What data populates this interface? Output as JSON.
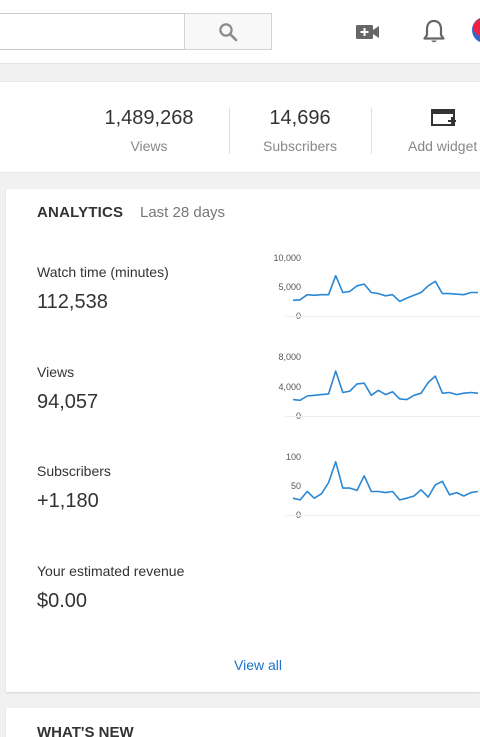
{
  "search": {
    "placeholder": ""
  },
  "header": {
    "search_icon": "search-icon",
    "upload_icon": "video-camera-add-icon",
    "notifications_icon": "bell-icon"
  },
  "stats": {
    "views": {
      "value": "1,489,268",
      "label": "Views"
    },
    "subscribers": {
      "value": "14,696",
      "label": "Subscribers"
    },
    "add_widget": {
      "label": "Add widget"
    }
  },
  "analytics": {
    "title": "ANALYTICS",
    "period": "Last 28 days",
    "metrics": [
      {
        "label": "Watch time (minutes)",
        "value": "112,538",
        "ticks": [
          "10,000",
          "5,000",
          "0"
        ],
        "max": 10000,
        "series": [
          2800,
          2900,
          3800,
          3700,
          3800,
          3800,
          7200,
          4200,
          4400,
          5400,
          5700,
          4200,
          4000,
          3600,
          3800,
          2600,
          3200,
          3700,
          4200,
          5400,
          6200,
          4000,
          4000,
          3900,
          3800,
          4200,
          4200
        ]
      },
      {
        "label": "Views",
        "value": "94,057",
        "ticks": [
          "8,000",
          "4,000",
          "0"
        ],
        "max": 8000,
        "series": [
          2300,
          2200,
          2800,
          2900,
          3000,
          3100,
          6300,
          3300,
          3500,
          4500,
          4600,
          2900,
          3600,
          3000,
          3400,
          2400,
          2300,
          2900,
          3200,
          4700,
          5600,
          3200,
          3300,
          3000,
          3200,
          3300,
          3200
        ]
      },
      {
        "label": "Subscribers",
        "value": "+1,180",
        "ticks": [
          "100",
          "50",
          "0"
        ],
        "max": 100,
        "series": [
          30,
          27,
          42,
          30,
          38,
          58,
          95,
          48,
          48,
          44,
          70,
          42,
          42,
          40,
          42,
          27,
          30,
          34,
          45,
          32,
          54,
          60,
          36,
          40,
          34,
          40,
          42
        ]
      },
      {
        "label": "Your estimated revenue",
        "value": "$0.00"
      }
    ],
    "view_all": "View all"
  },
  "whats_new": {
    "title": "WHAT'S NEW"
  },
  "colors": {
    "accent": "#1a73c7",
    "line": "#2a87d3"
  }
}
